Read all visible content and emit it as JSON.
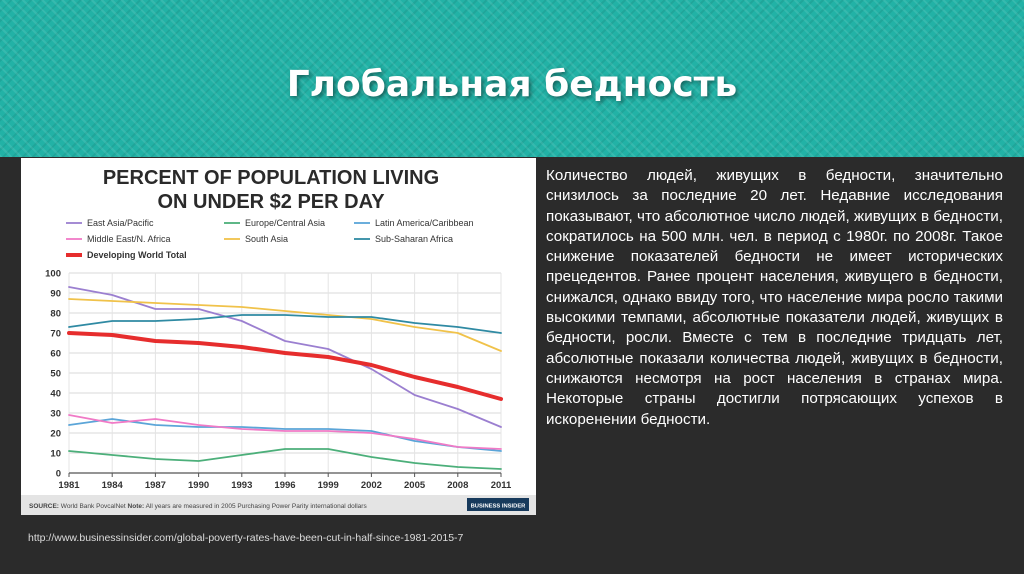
{
  "slide": {
    "title": "Глобальная бедность",
    "body_text": "Количество людей, живущих в бедности, значительно снизилось за последние 20 лет. Недавние исследования показывают, что абсолютное число людей, живущих в бедности, сократилось на 500 млн. чел. в период с 1980г. по 2008г. Такое снижение показателей бедности не имеет исторических прецедентов. Ранее процент населения, живущего в бедности, снижался, однако ввиду того, что население мира росло такими высокими темпами, абсолютные показатели людей, живущих в бедности, росли. Вместе с тем в последние тридцать лет, абсолютные показали количества людей, живущих в бедности, снижаются несмотря на рост населения в странах мира. Некоторые страны достигли потрясающих успехов в искоренении бедности.",
    "source_link": "http://www.businessinsider.com/global-poverty-rates-have-been-cut-in-half-since-1981-2015-7"
  },
  "chart_data": {
    "type": "line",
    "title_line1": "PERCENT OF POPULATION LIVING",
    "title_line2": "ON UNDER $2 PER DAY",
    "x": [
      "1981",
      "1984",
      "1987",
      "1990",
      "1993",
      "1996",
      "1999",
      "2002",
      "2005",
      "2008",
      "2011"
    ],
    "ylim": [
      0,
      100
    ],
    "yticks": [
      "0",
      "10",
      "20",
      "30",
      "40",
      "50",
      "60",
      "70",
      "80",
      "90",
      "100"
    ],
    "grid": true,
    "legend_position": "top",
    "series": [
      {
        "name": "East Asia/Pacific",
        "color": "#9b7fd0",
        "values": [
          93,
          89,
          82,
          82,
          76,
          66,
          62,
          52,
          39,
          32,
          23
        ]
      },
      {
        "name": "Europe/Central Asia",
        "color": "#4caf7a",
        "values": [
          11,
          9,
          7,
          6,
          9,
          12,
          12,
          8,
          5,
          3,
          2
        ]
      },
      {
        "name": "Latin America/Caribbean",
        "color": "#5ba5d8",
        "values": [
          24,
          27,
          24,
          23,
          23,
          22,
          22,
          21,
          16,
          13,
          11
        ]
      },
      {
        "name": "Middle East/N. Africa",
        "color": "#f07ac6",
        "values": [
          29,
          25,
          27,
          24,
          22,
          21,
          21,
          20,
          17,
          13,
          12
        ]
      },
      {
        "name": "South Asia",
        "color": "#f0c24a",
        "values": [
          87,
          86,
          85,
          84,
          83,
          81,
          79,
          77,
          73,
          70,
          61
        ]
      },
      {
        "name": "Sub-Saharan Africa",
        "color": "#2f8aa3",
        "values": [
          73,
          76,
          76,
          77,
          79,
          79,
          78,
          78,
          75,
          73,
          70
        ]
      },
      {
        "name": "Developing World Total",
        "color": "#e62d2d",
        "values": [
          70,
          69,
          66,
          65,
          63,
          60,
          58,
          54,
          48,
          43,
          37
        ]
      }
    ],
    "footer_source_label": "SOURCE:",
    "footer_source": "World Bank PovcalNet",
    "footer_note_label": "Note:",
    "footer_note": "All years are measured in 2005 Purchasing Power Parity international dollars",
    "footer_brand": "BUSINESS INSIDER"
  }
}
